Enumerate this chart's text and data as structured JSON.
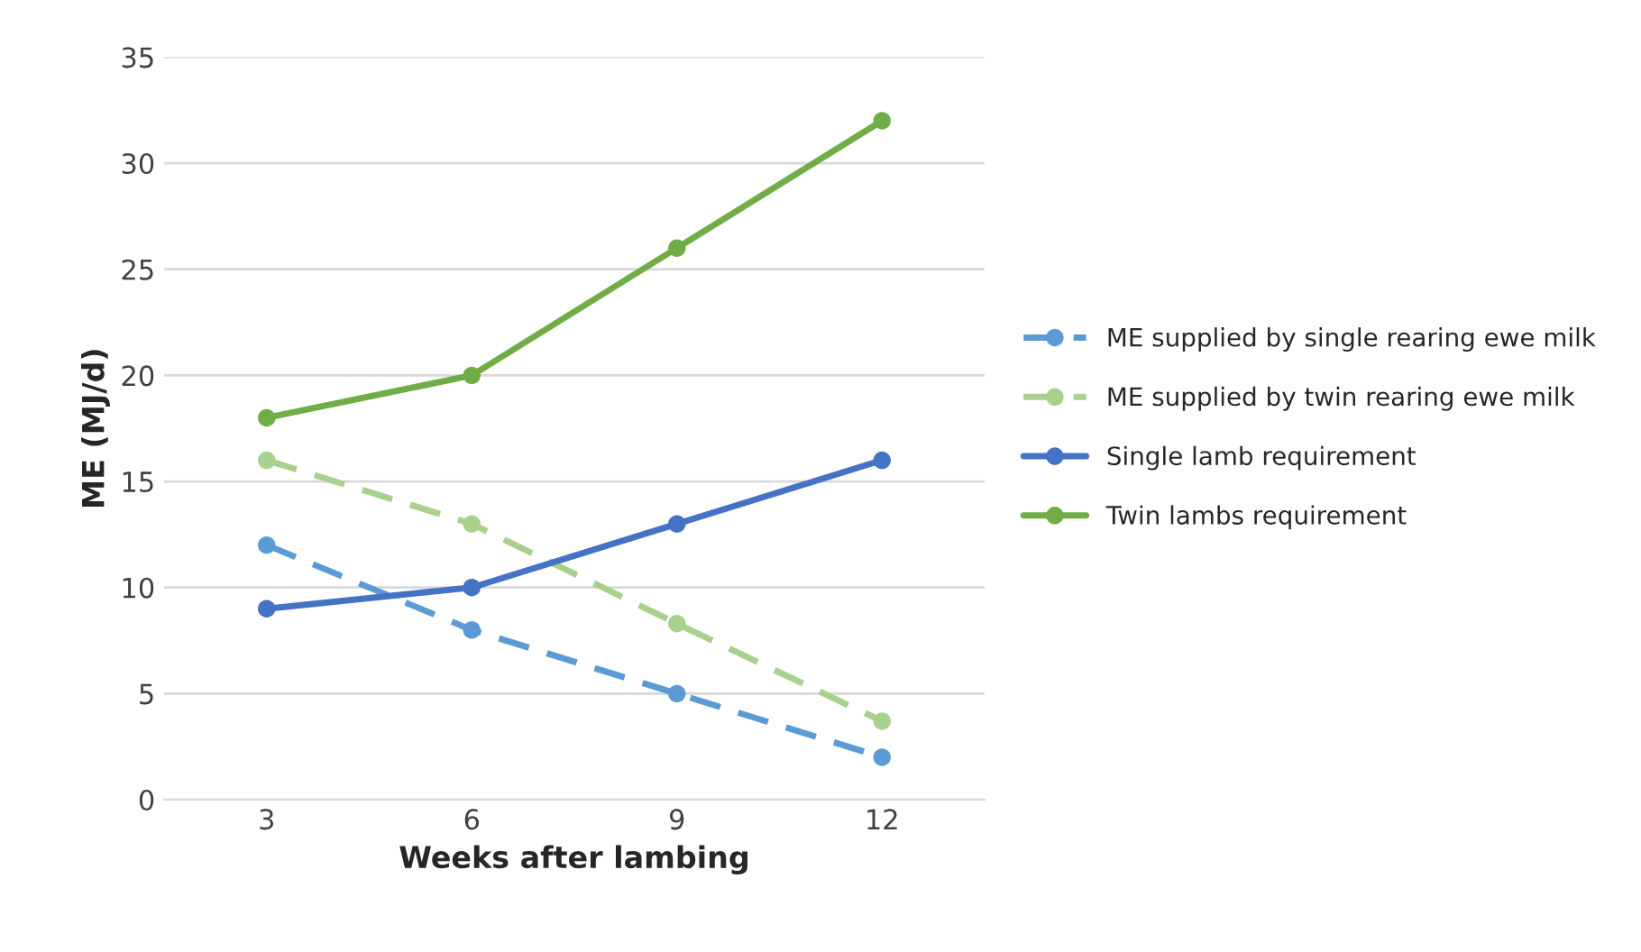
{
  "chart_data": {
    "type": "line",
    "xlabel": "Weeks after lambing",
    "ylabel": "ME (MJ/d)",
    "categories": [
      "3",
      "6",
      "9",
      "12"
    ],
    "series": [
      {
        "name": "ME supplied by single rearing ewe milk",
        "color": "#5b9bd5",
        "values": [
          12,
          8,
          5,
          2
        ],
        "line_style": "dashed"
      },
      {
        "name": "ME supplied by twin rearing ewe milk",
        "color": "#a9d18e",
        "values": [
          16,
          13,
          8.3,
          3.7
        ],
        "line_style": "dashed"
      },
      {
        "name": "Single lamb requirement",
        "color": "#4472c4",
        "values": [
          9,
          10,
          13,
          16
        ],
        "line_style": "solid"
      },
      {
        "name": "Twin lambs requirement",
        "color": "#70ad47",
        "values": [
          18,
          20,
          26,
          32
        ],
        "line_style": "solid"
      }
    ],
    "ylim": [
      0,
      35
    ],
    "yticks": [
      0,
      5,
      10,
      15,
      20,
      25,
      30,
      35
    ],
    "grid": "y",
    "legend": "right",
    "marker": "circle"
  }
}
